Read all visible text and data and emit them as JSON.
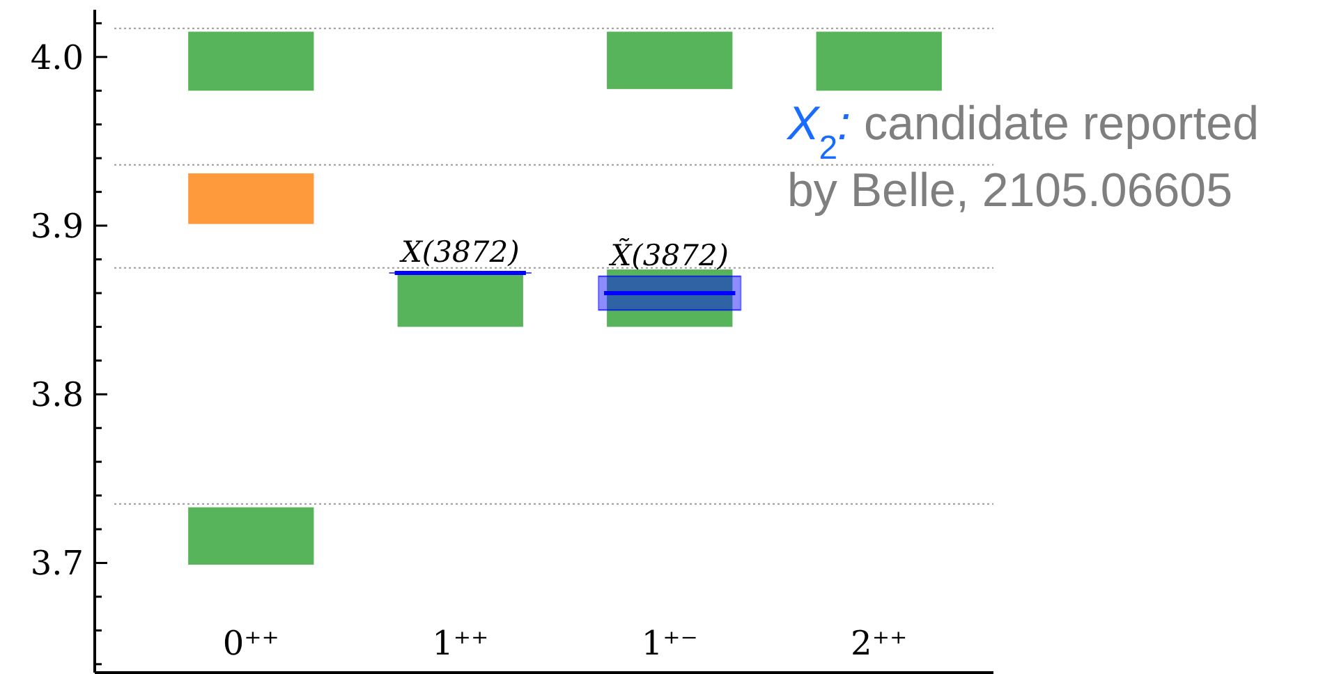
{
  "chart_data": {
    "type": "bar",
    "categories": [
      "0⁺⁺",
      "1⁺⁺",
      "1⁺⁻",
      "2⁺⁺"
    ],
    "ylim": [
      3.635,
      4.028
    ],
    "yticks": [
      {
        "value": 3.64,
        "label": null
      },
      {
        "value": 3.66,
        "label": null
      },
      {
        "value": 3.68,
        "label": null
      },
      {
        "value": 3.7,
        "label": "3.7"
      },
      {
        "value": 3.72,
        "label": null
      },
      {
        "value": 3.74,
        "label": null
      },
      {
        "value": 3.76,
        "label": null
      },
      {
        "value": 3.78,
        "label": null
      },
      {
        "value": 3.8,
        "label": "3.8"
      },
      {
        "value": 3.82,
        "label": null
      },
      {
        "value": 3.84,
        "label": null
      },
      {
        "value": 3.86,
        "label": null
      },
      {
        "value": 3.88,
        "label": null
      },
      {
        "value": 3.9,
        "label": "3.9"
      },
      {
        "value": 3.92,
        "label": null
      },
      {
        "value": 3.94,
        "label": null
      },
      {
        "value": 3.96,
        "label": null
      },
      {
        "value": 3.98,
        "label": null
      },
      {
        "value": 4,
        "label": "4.0"
      },
      {
        "value": 4.02,
        "label": null
      }
    ],
    "series": [
      {
        "color": "#58b45a",
        "base": [
          3.98,
          3.84,
          3.981,
          3.98
        ],
        "values": [
          0.035,
          0.031,
          0.034,
          0.035
        ]
      },
      {
        "color": "#58b45a",
        "base": [
          3.699,
          null,
          3.84,
          null
        ],
        "values": [
          0.034,
          null,
          0.034,
          null
        ]
      },
      {
        "color": "#ff9a3c",
        "base": [
          3.901,
          null,
          null,
          null
        ],
        "values": [
          0.03,
          null,
          null,
          null
        ]
      },
      {
        "type": "box",
        "color": "#0000ff",
        "boxes": [
          null,
          {
            "low": 3.872,
            "q1": 3.872,
            "median": 3.872,
            "q3": 3.872,
            "high": 3.872
          },
          {
            "low": 3.85,
            "q1": 3.85,
            "median": 3.86,
            "q3": 3.87,
            "high": 3.87
          },
          null
        ]
      }
    ],
    "ref_lines": [
      {
        "axis": "y",
        "value": 4.017,
        "color": "#999999",
        "line_style": "dotted"
      },
      {
        "axis": "y",
        "value": 3.936,
        "color": "#999999",
        "line_style": "dotted"
      },
      {
        "axis": "y",
        "value": 3.875,
        "color": "#999999",
        "line_style": "dotted"
      },
      {
        "axis": "y",
        "value": 3.735,
        "color": "#999999",
        "line_style": "dotted"
      }
    ],
    "annotations": [
      {
        "text": "X(3872)",
        "x": "1⁺⁺",
        "y": 3.872
      },
      {
        "text": "X̃(3872)",
        "x": "1⁺⁻",
        "y": 3.87
      },
      "X$_{2}$: candidate reported by Belle, 2105.06605"
    ]
  }
}
